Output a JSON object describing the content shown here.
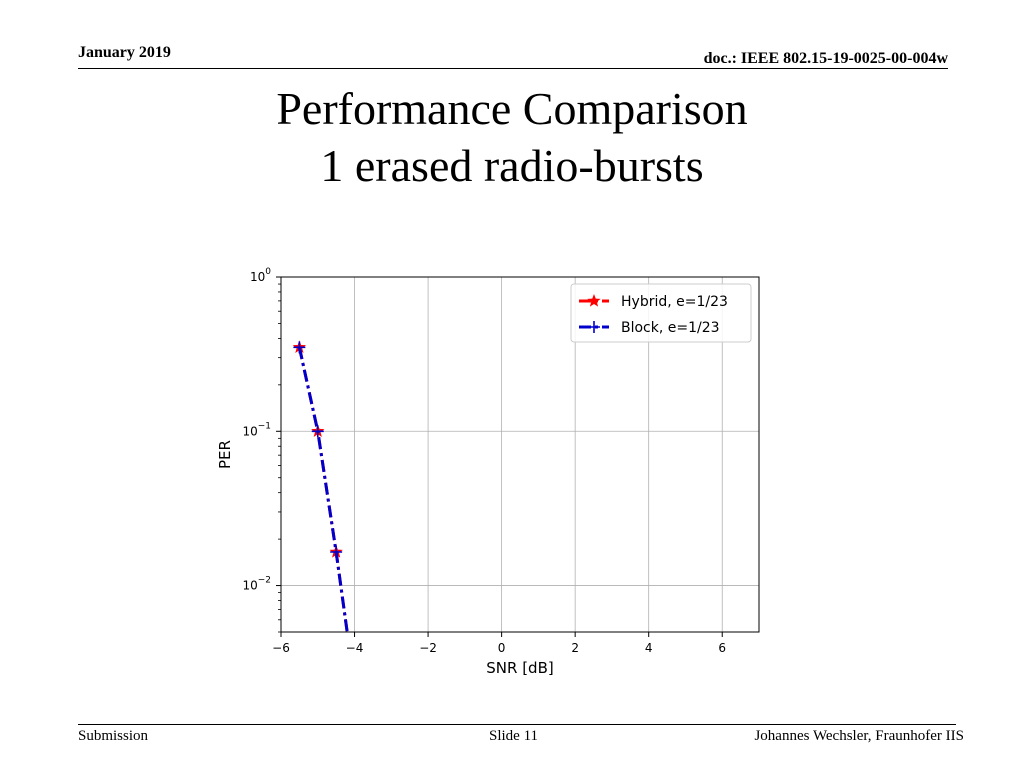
{
  "header": {
    "date": "January 2019",
    "doc": "doc.: IEEE 802.15-19-0025-00-004w"
  },
  "slide": {
    "title_line1": "Performance Comparison",
    "title_line2": "1 erased radio-bursts"
  },
  "footer": {
    "left": "Submission",
    "center": "Slide 11",
    "right": "Johannes Wechsler, Fraunhofer IIS"
  },
  "chart_data": {
    "type": "line",
    "xlabel": "SNR [dB]",
    "ylabel": "PER",
    "xlim": [
      -6,
      7
    ],
    "ylim": [
      0.005,
      1
    ],
    "yscale": "log",
    "grid": true,
    "legend_position": "top-right",
    "x_ticks": [
      -6,
      -4,
      -2,
      0,
      2,
      4,
      6
    ],
    "x_tick_labels": [
      "−6",
      "−4",
      "−2",
      "0",
      "2",
      "4",
      "6"
    ],
    "y_ticks": [
      1,
      0.1,
      0.01
    ],
    "y_tick_labels": [
      {
        "base": "10",
        "exp": "0"
      },
      {
        "base": "10",
        "exp": "−1"
      },
      {
        "base": "10",
        "exp": "−2"
      }
    ],
    "series": [
      {
        "name": "Hybrid, e=1/23",
        "color": "#ff0000",
        "marker": "star",
        "line_style": "dashdot",
        "x": [
          -5.5,
          -5.0,
          -4.5,
          -4.2
        ],
        "y": [
          0.35,
          0.1,
          0.0165,
          0.005
        ]
      },
      {
        "name": "Block, e=1/23",
        "color": "#0000cc",
        "marker": "plus",
        "line_style": "dashdot",
        "x": [
          -5.5,
          -5.0,
          -4.5,
          -4.2
        ],
        "y": [
          0.35,
          0.1,
          0.0165,
          0.005
        ]
      }
    ]
  }
}
